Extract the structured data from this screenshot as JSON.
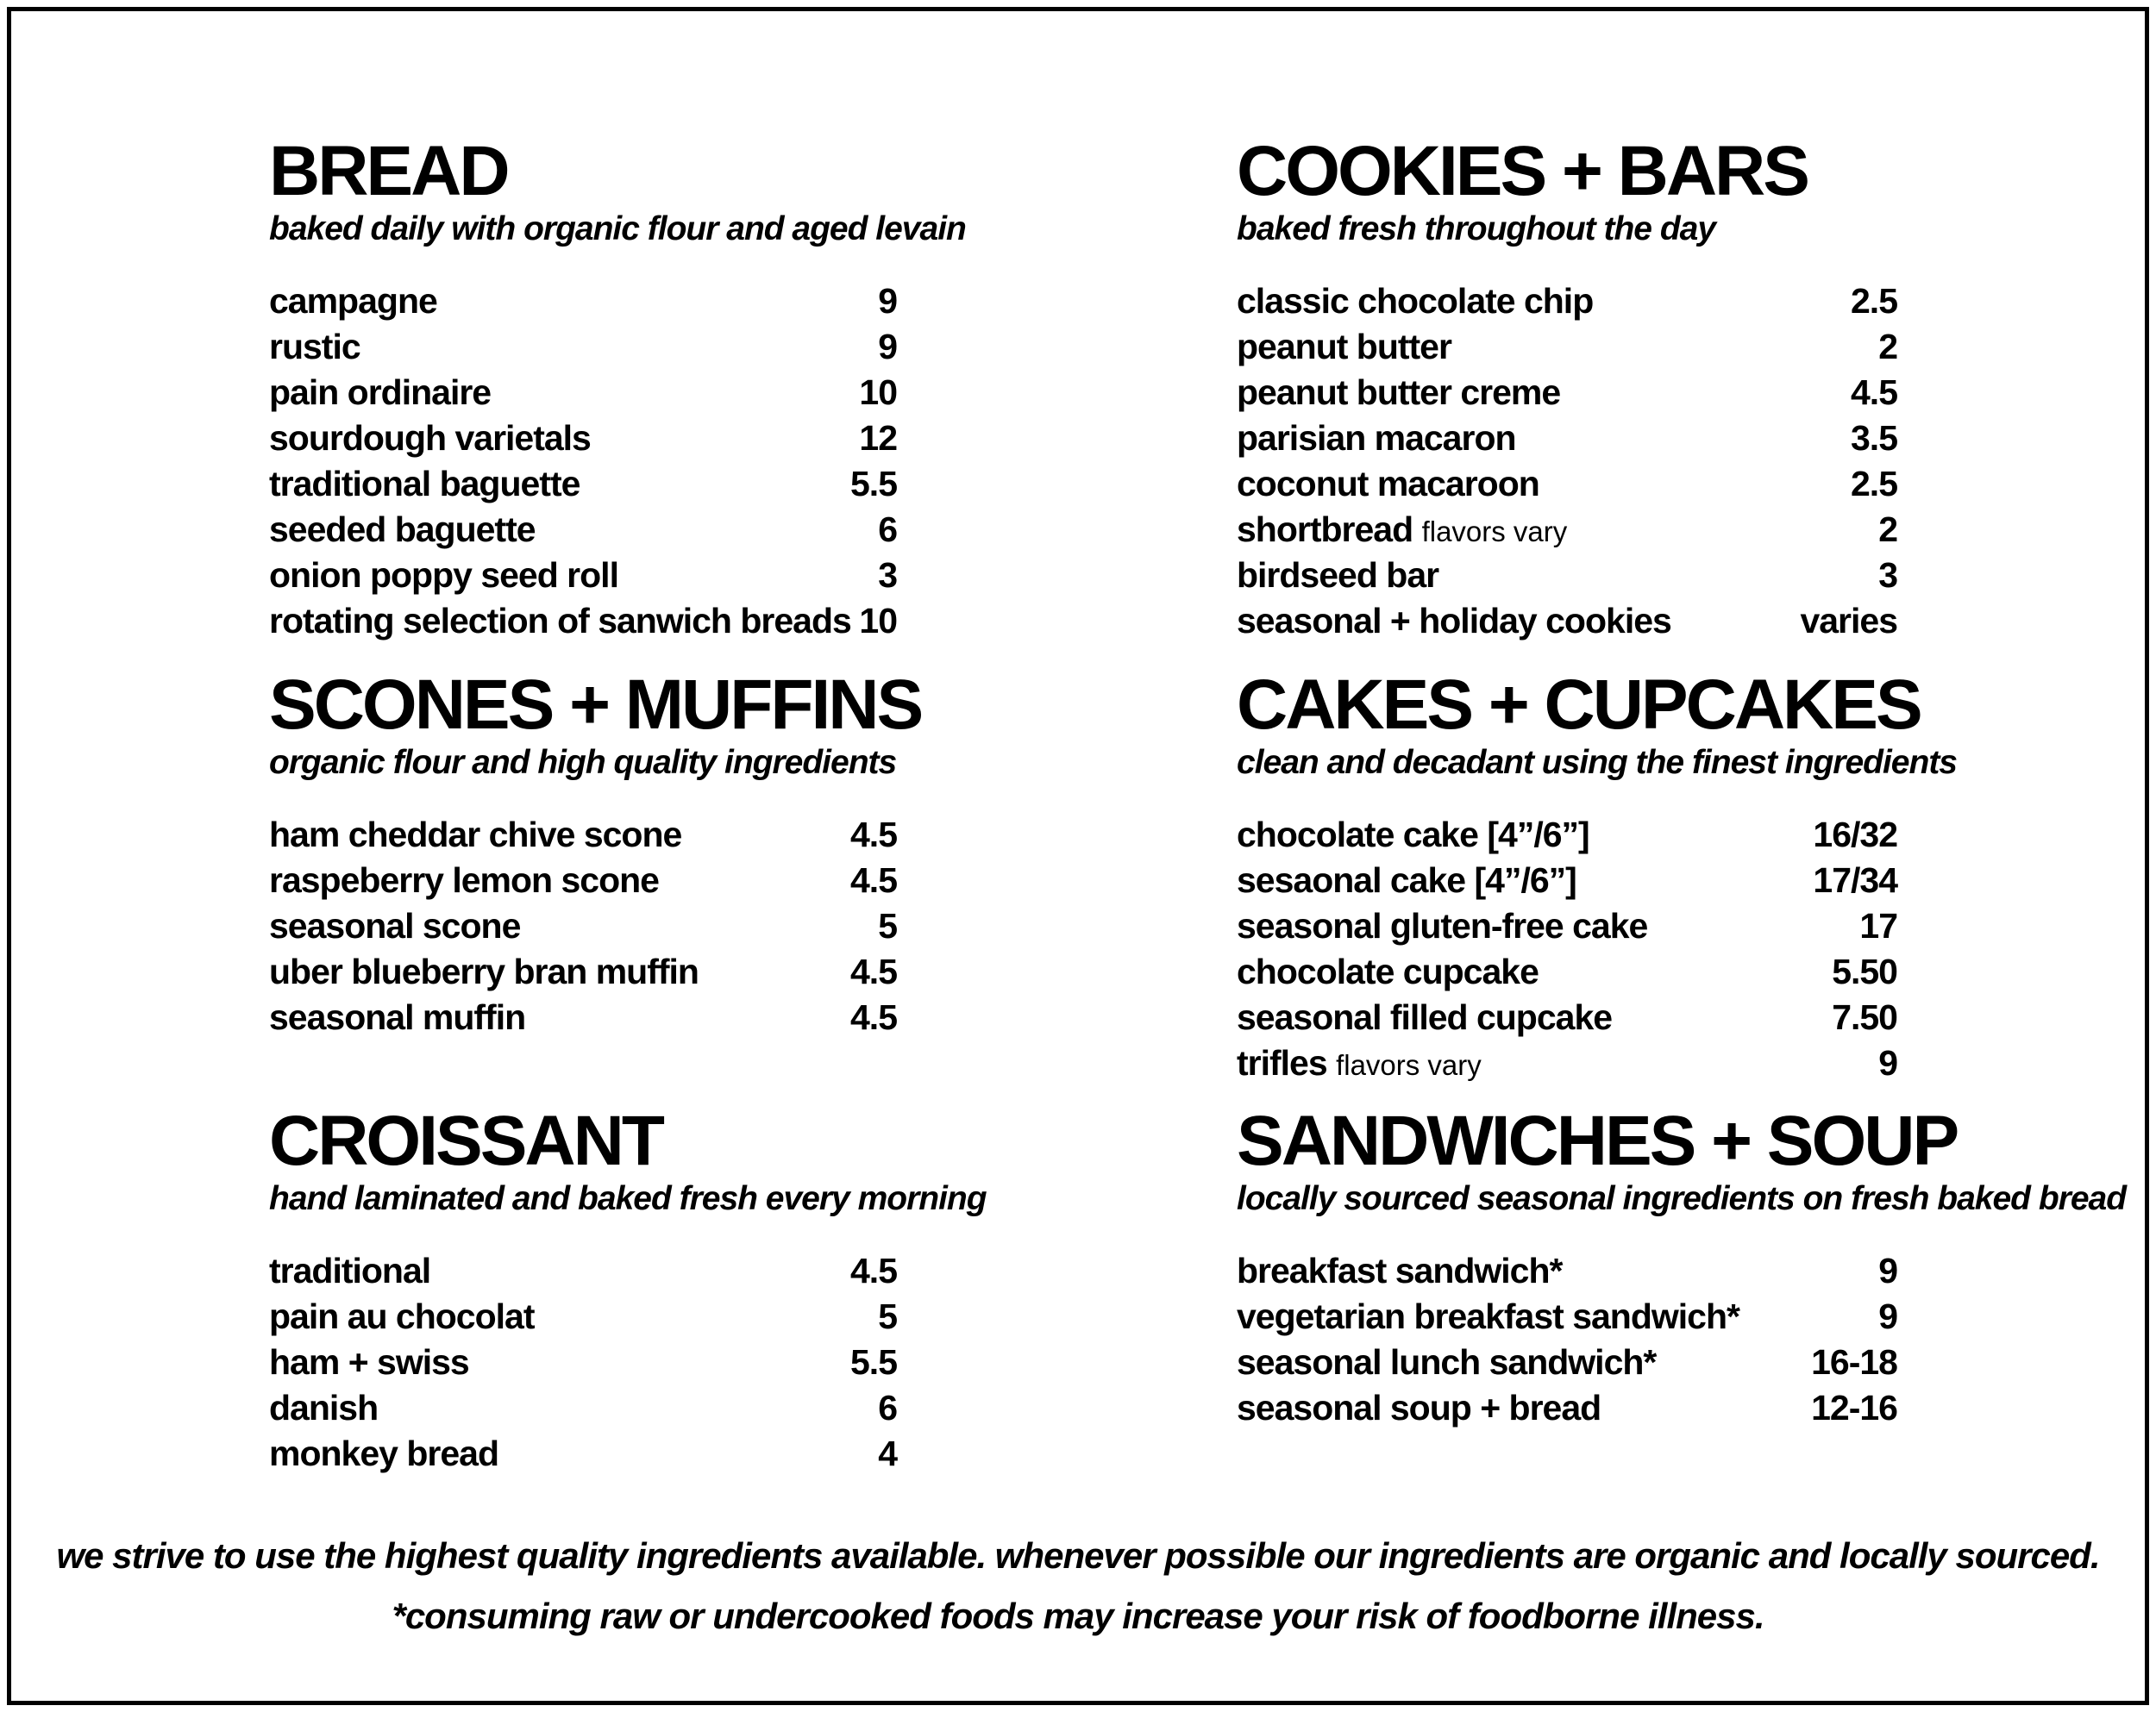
{
  "page": {
    "background": "#ffffff",
    "text_color": "#000000",
    "border_color": "#000000"
  },
  "sections_left": [
    {
      "title": "BREAD",
      "subtitle": "baked daily with organic flour and aged levain",
      "items": [
        {
          "name": "campagne",
          "price": "9"
        },
        {
          "name": "rustic",
          "price": "9"
        },
        {
          "name": "pain ordinaire",
          "price": "10"
        },
        {
          "name": "sourdough varietals",
          "price": "12"
        },
        {
          "name": "traditional baguette",
          "price": "5.5"
        },
        {
          "name": "seeded baguette",
          "price": "6"
        },
        {
          "name": "onion poppy seed roll",
          "price": "3"
        },
        {
          "name": "rotating selection of sanwich breads",
          "price": "10"
        }
      ]
    },
    {
      "title": "SCONES + MUFFINS",
      "subtitle": "organic flour and high quality ingredients",
      "items": [
        {
          "name": "ham cheddar chive scone",
          "price": "4.5"
        },
        {
          "name": "raspeberry lemon scone",
          "price": "4.5"
        },
        {
          "name": "seasonal scone",
          "price": "5"
        },
        {
          "name": "uber blueberry bran muffin",
          "price": "4.5"
        },
        {
          "name": "seasonal muffin",
          "price": "4.5"
        }
      ]
    },
    {
      "title": "CROISSANT",
      "subtitle": "hand laminated and baked fresh every morning",
      "items": [
        {
          "name": "traditional",
          "price": "4.5"
        },
        {
          "name": "pain au chocolat",
          "price": "5"
        },
        {
          "name": "ham + swiss",
          "price": "5.5"
        },
        {
          "name": "danish",
          "price": "6"
        },
        {
          "name": "monkey bread",
          "price": "4"
        }
      ]
    }
  ],
  "sections_right": [
    {
      "title": "COOKIES + BARS",
      "subtitle": "baked fresh throughout the day",
      "items": [
        {
          "name": "classic chocolate chip",
          "price": "2.5"
        },
        {
          "name": "peanut butter",
          "price": "2"
        },
        {
          "name": "peanut butter creme",
          "price": "4.5"
        },
        {
          "name": "parisian macaron",
          "price": "3.5"
        },
        {
          "name": "coconut macaroon",
          "price": "2.5"
        },
        {
          "name": "shortbread",
          "note": "flavors vary",
          "price": "2"
        },
        {
          "name": "birdseed bar",
          "price": "3"
        },
        {
          "name": "seasonal + holiday cookies",
          "price": "varies"
        }
      ]
    },
    {
      "title": "CAKES + CUPCAKES",
      "subtitle": "clean and decadant using the finest ingredients",
      "items": [
        {
          "name": "chocolate cake [4”/6”]",
          "price": "16/32"
        },
        {
          "name": "sesaonal cake [4”/6”]",
          "price": "17/34"
        },
        {
          "name": "seasonal gluten-free cake",
          "price": "17"
        },
        {
          "name": "chocolate cupcake",
          "price": "5.50"
        },
        {
          "name": "seasonal filled cupcake",
          "price": "7.50"
        },
        {
          "name": "trifles",
          "note": "flavors vary",
          "price": "9"
        }
      ]
    },
    {
      "title": "SANDWICHES + SOUP",
      "subtitle": "locally sourced seasonal ingredients on fresh baked bread",
      "items": [
        {
          "name": "breakfast sandwich*",
          "price": "9"
        },
        {
          "name": "vegetarian breakfast sandwich*",
          "price": "9"
        },
        {
          "name": "seasonal lunch sandwich*",
          "price": "16-18"
        },
        {
          "name": "seasonal soup + bread",
          "price": "12-16"
        }
      ]
    }
  ],
  "footer": {
    "line1": "we strive to use the highest quality ingredients available. whenever possible our ingredients are organic and locally sourced.",
    "line2": "*consuming raw or undercooked foods may increase your risk of foodborne illness."
  }
}
